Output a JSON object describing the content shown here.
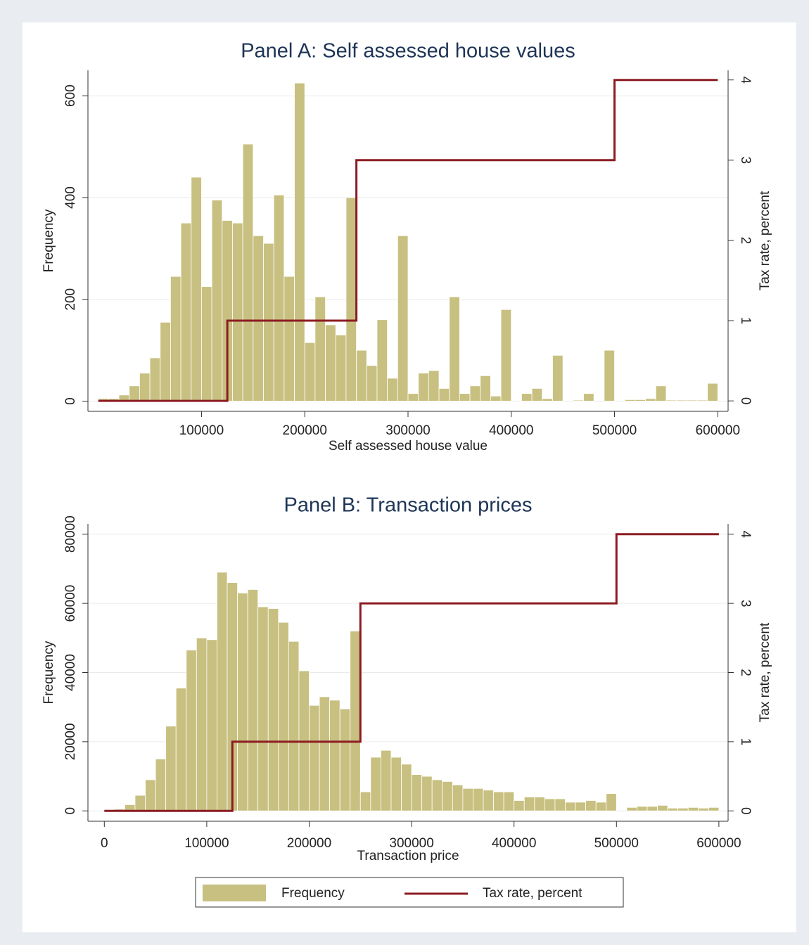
{
  "chart_data": [
    {
      "type": "histogram",
      "title": "Panel A: Self assessed house values",
      "xlabel": "Self assessed house value",
      "ylabel": "Frequency",
      "y2label": "Tax rate, percent",
      "xlim": [
        -10000,
        610000
      ],
      "ylim": [
        -20,
        650
      ],
      "y2lim": [
        -0.13,
        4.12
      ],
      "xticks": [
        100000,
        200000,
        300000,
        400000,
        500000,
        600000
      ],
      "yticks": [
        0,
        200,
        400,
        600
      ],
      "y2ticks": [
        0,
        1,
        2,
        3,
        4
      ],
      "grid": true,
      "series": [
        {
          "type": "histogram",
          "color": "#c8c081",
          "bins": [
            0,
            10000,
            20000,
            30000,
            40000,
            50000,
            60000,
            70000,
            80000,
            90000,
            100000,
            110000,
            120000,
            130000,
            140000,
            150000,
            160000,
            170000,
            180000,
            190000,
            200000,
            210000,
            220000,
            230000,
            240000,
            250000,
            260000,
            270000,
            280000,
            290000,
            300000,
            310000,
            320000,
            330000,
            340000,
            350000,
            360000,
            370000,
            380000,
            390000,
            400000,
            410000,
            420000,
            430000,
            440000,
            450000,
            460000,
            470000,
            480000,
            490000,
            500000,
            510000,
            520000,
            530000,
            540000,
            550000,
            560000,
            570000,
            580000,
            590000,
            600000
          ],
          "values": [
            5,
            5,
            12,
            30,
            55,
            85,
            155,
            245,
            350,
            440,
            225,
            395,
            355,
            350,
            505,
            325,
            310,
            405,
            245,
            625,
            115,
            205,
            150,
            130,
            400,
            100,
            70,
            160,
            45,
            325,
            15,
            55,
            60,
            25,
            205,
            15,
            30,
            50,
            10,
            180,
            0,
            15,
            25,
            5,
            90,
            0,
            2,
            15,
            0,
            100,
            0,
            3,
            3,
            5,
            30,
            2,
            2,
            2,
            2,
            35
          ]
        },
        {
          "type": "line",
          "axis": "y2",
          "color": "#8c1c22",
          "x": [
            0,
            125000,
            125000,
            250000,
            250000,
            500000,
            500000,
            600000
          ],
          "values": [
            0,
            0,
            1,
            1,
            3,
            3,
            4,
            4
          ]
        }
      ]
    },
    {
      "type": "histogram",
      "title": "Panel B: Transaction prices",
      "xlabel": "Transaction price",
      "ylabel": "Frequency",
      "y2label": "Tax rate, percent",
      "xlim": [
        -16000,
        609000
      ],
      "ylim": [
        -3000,
        83000
      ],
      "y2lim": [
        -0.15,
        4.15
      ],
      "xticks": [
        0,
        100000,
        200000,
        300000,
        400000,
        500000,
        600000
      ],
      "yticks": [
        0,
        20000,
        40000,
        60000,
        80000
      ],
      "y2ticks": [
        0,
        1,
        2,
        3,
        4
      ],
      "grid": true,
      "series": [
        {
          "type": "histogram",
          "color": "#c8c081",
          "bins": [
            0,
            10000,
            20000,
            30000,
            40000,
            50000,
            60000,
            70000,
            80000,
            90000,
            100000,
            110000,
            120000,
            130000,
            140000,
            150000,
            160000,
            170000,
            180000,
            190000,
            200000,
            210000,
            220000,
            230000,
            240000,
            250000,
            260000,
            270000,
            280000,
            290000,
            300000,
            310000,
            320000,
            330000,
            340000,
            350000,
            360000,
            370000,
            380000,
            390000,
            400000,
            410000,
            420000,
            430000,
            440000,
            450000,
            460000,
            470000,
            480000,
            490000,
            500000,
            510000,
            520000,
            530000,
            540000,
            550000,
            560000,
            570000,
            580000,
            590000,
            600000
          ],
          "values": [
            0,
            500,
            1800,
            4500,
            9000,
            15000,
            24500,
            35500,
            46500,
            50000,
            49500,
            69000,
            66000,
            63000,
            64000,
            59000,
            58500,
            54500,
            49000,
            40500,
            30500,
            33000,
            32000,
            29500,
            52000,
            5500,
            15500,
            17500,
            15500,
            13500,
            10500,
            10000,
            9000,
            8500,
            7500,
            6500,
            6500,
            6000,
            5500,
            5500,
            3000,
            4000,
            4000,
            3500,
            3500,
            2500,
            2500,
            3000,
            2500,
            5000,
            0,
            1000,
            1300,
            1300,
            1600,
            800,
            800,
            1000,
            800,
            1000
          ]
        },
        {
          "type": "line",
          "axis": "y2",
          "color": "#8c1c22",
          "x": [
            0,
            125000,
            125000,
            250000,
            250000,
            500000,
            500000,
            600000
          ],
          "values": [
            0,
            0,
            1,
            1,
            3,
            3,
            4,
            4
          ]
        }
      ]
    }
  ],
  "legend": {
    "position": "bottom",
    "entries": [
      {
        "label": "Frequency"
      },
      {
        "label": "Tax rate, percent"
      }
    ]
  }
}
